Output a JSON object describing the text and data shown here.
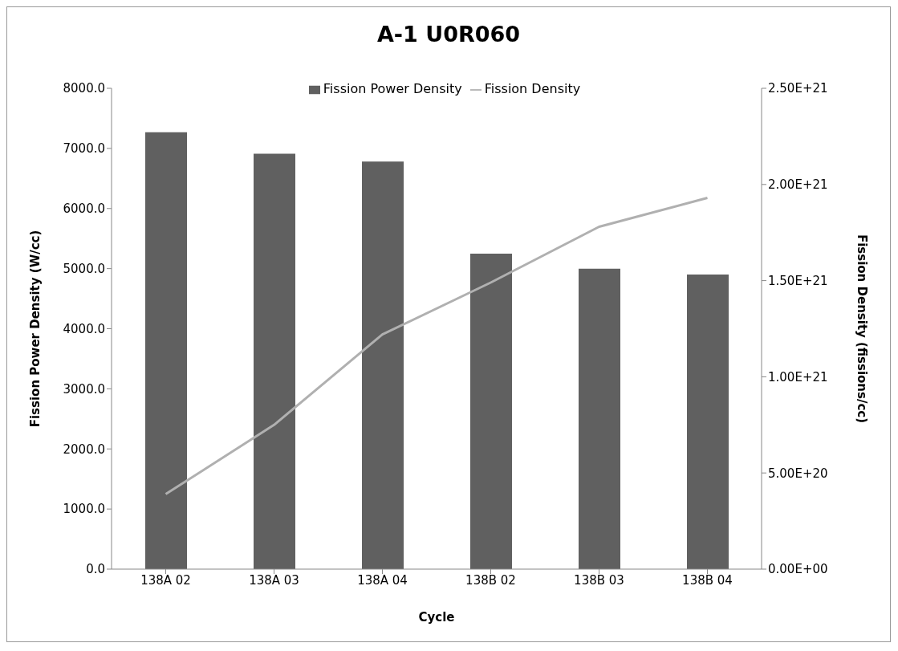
{
  "chart_data": {
    "type": "bar",
    "title": "A-1 U0R060",
    "xlabel": "Cycle",
    "ylabel": "Fission Power Density (W/cc)",
    "y2label": "Fission Density (fissions/cc)",
    "categories": [
      "138A 02",
      "138A 03",
      "138A 04",
      "138B 02",
      "138B 03",
      "138B 04"
    ],
    "series": [
      {
        "name": "Fission Power Density",
        "color": "#606060",
        "values": [
          7270,
          6910,
          6780,
          5250,
          5000,
          4900
        ]
      },
      {
        "name": "Fission Density",
        "type": "line",
        "axis": "y2",
        "color": "#b0b0b0",
        "values": [
          3.9e+20,
          7.5e+20,
          1.22e+21,
          1.49e+21,
          1.78e+21,
          1.93e+21
        ]
      }
    ],
    "ylim": [
      0,
      8000
    ],
    "yticks": [
      {
        "value": 0,
        "label": "0.0"
      },
      {
        "value": 1000,
        "label": "1000.0"
      },
      {
        "value": 2000,
        "label": "2000.0"
      },
      {
        "value": 3000,
        "label": "3000.0"
      },
      {
        "value": 4000,
        "label": "4000.0"
      },
      {
        "value": 5000,
        "label": "5000.0"
      },
      {
        "value": 6000,
        "label": "6000.0"
      },
      {
        "value": 7000,
        "label": "7000.0"
      },
      {
        "value": 8000,
        "label": "8000.0"
      }
    ],
    "y2lim": [
      0,
      2.5e+21
    ],
    "y2ticks": [
      {
        "value": 0,
        "label": "0.00E+00"
      },
      {
        "value": 5e+20,
        "label": "5.00E+20"
      },
      {
        "value": 1e+21,
        "label": "1.00E+21"
      },
      {
        "value": 1.5e+21,
        "label": "1.50E+21"
      },
      {
        "value": 2e+21,
        "label": "2.00E+21"
      },
      {
        "value": 2.5e+21,
        "label": "2.50E+21"
      }
    ],
    "grid": false,
    "legend": "top",
    "marker": "none",
    "line_style": "solid"
  }
}
